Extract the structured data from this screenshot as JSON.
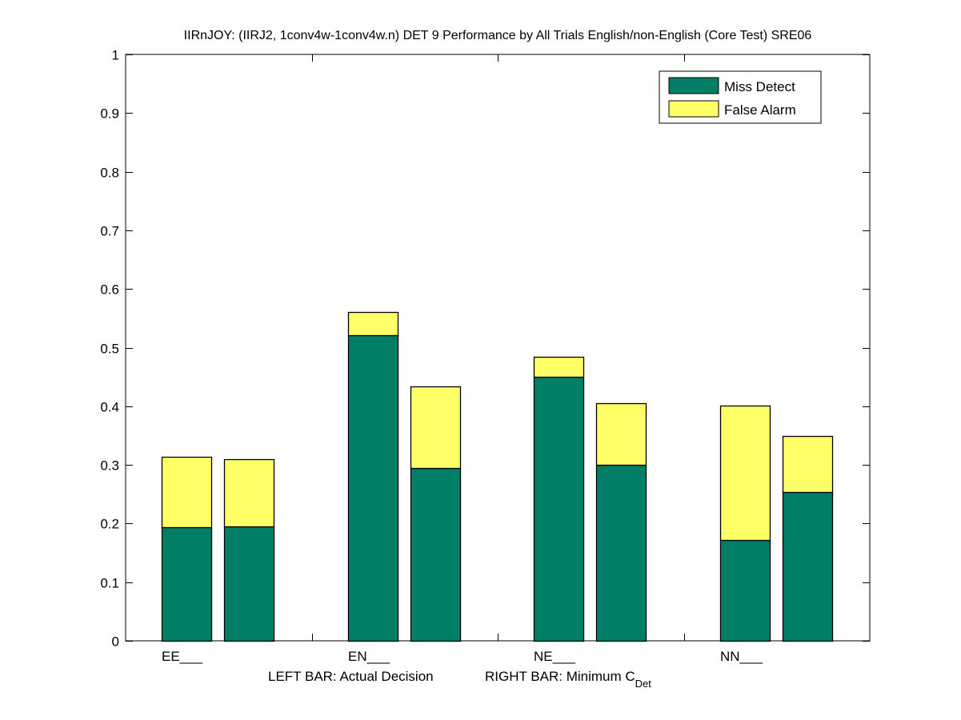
{
  "chart_data": {
    "type": "bar",
    "stacked": true,
    "title": "IIRnJOY: (IIRJ2, 1conv4w-1conv4w.n) DET 9 Performance by All Trials English/non-English (Core Test) SRE06",
    "xlabel_left": "LEFT BAR: Actual Decision",
    "xlabel_right_main": "RIGHT BAR: Minimum C",
    "xlabel_right_sub": "Det",
    "ylabel": "",
    "ylim": [
      0,
      1
    ],
    "yticks": [
      "0",
      "0.1",
      "0.2",
      "0.3",
      "0.4",
      "0.5",
      "0.6",
      "0.7",
      "0.8",
      "0.9",
      "1"
    ],
    "categories": [
      "EE___",
      "EN___",
      "NE___",
      "NN___"
    ],
    "bar_roles": [
      "Actual Decision",
      "Minimum C_Det"
    ],
    "series": [
      {
        "name": "Miss Detect",
        "color": "#007f66",
        "actual_decision": [
          0.194,
          0.521,
          0.45,
          0.172
        ],
        "minimum_cdet": [
          0.195,
          0.295,
          0.3,
          0.254
        ]
      },
      {
        "name": "False Alarm",
        "color": "#ffff66",
        "actual_decision": [
          0.12,
          0.04,
          0.034,
          0.229
        ],
        "minimum_cdet": [
          0.115,
          0.139,
          0.105,
          0.095
        ]
      }
    ],
    "legend": {
      "position": "top-right",
      "entries": [
        "Miss Detect",
        "False Alarm"
      ]
    },
    "grid": false
  }
}
